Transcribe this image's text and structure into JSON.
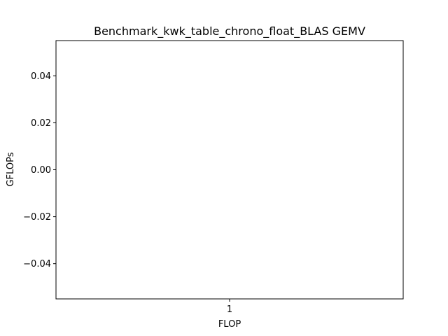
{
  "chart_data": {
    "type": "line",
    "title": "Benchmark_kwk_table_chrono_float_BLAS GEMV",
    "xlabel": "FLOP",
    "ylabel": "GFLOPs",
    "x_ticks": [
      "1"
    ],
    "xlim": [
      0.95,
      1.05
    ],
    "ylim": [
      -0.055,
      0.055
    ],
    "y_ticks": [
      {
        "value": 0.04,
        "label": "0.04"
      },
      {
        "value": 0.02,
        "label": "0.02"
      },
      {
        "value": 0.0,
        "label": "0.00"
      },
      {
        "value": -0.02,
        "label": "−0.02"
      },
      {
        "value": -0.04,
        "label": "−0.04"
      }
    ],
    "series": [],
    "grid": false
  }
}
